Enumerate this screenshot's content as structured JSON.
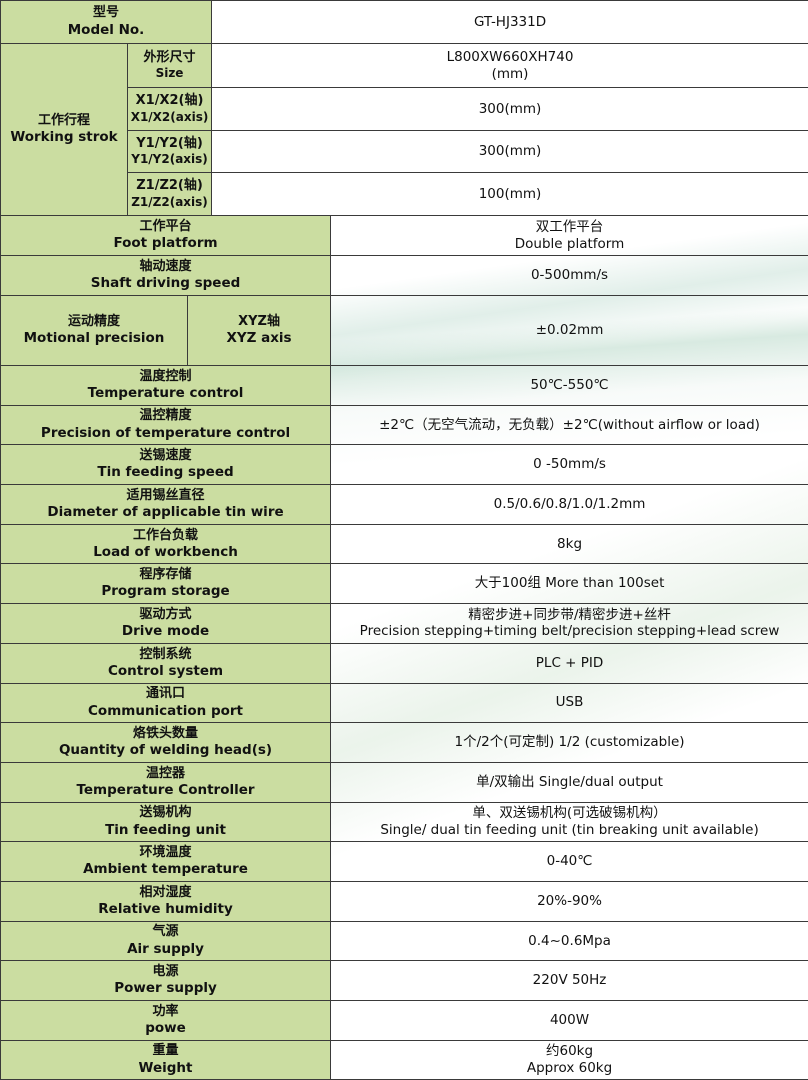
{
  "model": {
    "zh": "型号",
    "en": "Model No.",
    "value": "GT-HJ331D"
  },
  "working_stroke": {
    "zh": "工作行程",
    "en": "Working strok",
    "rows": [
      {
        "zh": "外形尺寸",
        "en": "Size",
        "value": [
          "L800XW660XH740",
          "(mm)"
        ]
      },
      {
        "zh": "X1/X2(轴)",
        "en": "X1/X2(axis)",
        "value": [
          "300(mm)"
        ]
      },
      {
        "zh": "Y1/Y2(轴)",
        "en": "Y1/Y2(axis)",
        "value": [
          "300(mm)"
        ]
      },
      {
        "zh": "Z1/Z2(轴)",
        "en": "Z1/Z2(axis)",
        "value": [
          "100(mm)"
        ]
      }
    ]
  },
  "rows_a": [
    {
      "zh": "工作平台",
      "en": "Foot platform",
      "value": [
        "双工作平台",
        "Double platform"
      ]
    },
    {
      "zh": "轴动速度",
      "en": "Shaft driving speed",
      "value": [
        "0-500mm/s"
      ]
    }
  ],
  "motional": {
    "zh": "运动精度",
    "en": "Motional precision",
    "sub_zh": "XYZ轴",
    "sub_en": "XYZ axis",
    "value": "±0.02mm"
  },
  "rows_b": [
    {
      "zh": "温度控制",
      "en": "Temperature control",
      "value": [
        "50℃-550℃"
      ]
    },
    {
      "zh": "温控精度",
      "en": "Precision of temperature control",
      "value": [
        "±2℃（无空气流动，无负载）±2℃(without airflow or load)"
      ]
    },
    {
      "zh": "送锡速度",
      "en": "Tin feeding speed",
      "value": [
        "0 -50mm/s"
      ]
    },
    {
      "zh": "适用锡丝直径",
      "en": "Diameter of applicable tin wire",
      "value": [
        "0.5/0.6/0.8/1.0/1.2mm"
      ]
    },
    {
      "zh": "工作台负载",
      "en": "Load of workbench",
      "value": [
        "8kg"
      ]
    },
    {
      "zh": "程序存储",
      "en": "Program storage",
      "value": [
        "大于100组 More than 100set"
      ]
    },
    {
      "zh": "驱动方式",
      "en": "Drive mode",
      "value": [
        "精密步进+同步带/精密步进+丝杆",
        "Precision stepping+timing belt/precision stepping+lead screw"
      ]
    },
    {
      "zh": "控制系统",
      "en": "Control system",
      "value": [
        "PLC + PID"
      ]
    },
    {
      "zh": "通讯口",
      "en": "Communication port",
      "value": [
        "USB"
      ]
    },
    {
      "zh": "烙铁头数量",
      "en": "Quantity of welding head(s)",
      "value": [
        "1个/2个(可定制)  1/2 (customizable)"
      ]
    },
    {
      "zh": "温控器",
      "en": "Temperature Controller",
      "value": [
        "单/双输出 Single/dual output"
      ]
    },
    {
      "zh": "送锡机构",
      "en": "Tin feeding unit",
      "value": [
        "单、双送锡机构(可选破锡机构）",
        "Single/ dual tin feeding unit (tin breaking unit available)"
      ]
    },
    {
      "zh": "环境温度",
      "en": "Ambient temperature",
      "value": [
        "0-40℃"
      ]
    },
    {
      "zh": "相对湿度",
      "en": "Relative humidity",
      "value": [
        "20%-90%"
      ]
    },
    {
      "zh": "气源",
      "en": "Air supply",
      "value": [
        "0.4~0.6Mpa"
      ]
    },
    {
      "zh": "电源",
      "en": "Power supply",
      "value": [
        "220V 50Hz"
      ]
    },
    {
      "zh": "功率",
      "en": "powe",
      "value": [
        "400W"
      ]
    },
    {
      "zh": "重量",
      "en": "Weight",
      "value": [
        "约60kg",
        "Approx 60kg"
      ]
    }
  ],
  "colors": {
    "label_bg": "#cbdda1",
    "border": "#3a3a3a"
  }
}
